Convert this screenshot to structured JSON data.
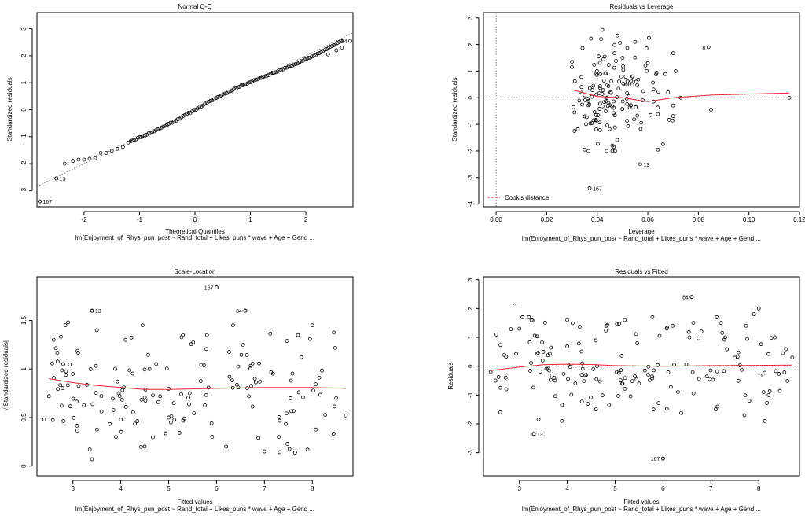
{
  "chart_data": [
    {
      "id": "qq",
      "type": "scatter",
      "title": "Normal Q-Q",
      "xlabel": "Theoretical Quantiles",
      "ylabel": "Standardized residuals",
      "subtitle": "lm(Enjoyment_of_Rhys_pun_post ~ Rand_total + Likes_puns * wave + Age + Gend ...",
      "xlim": [
        -2.85,
        2.85
      ],
      "ylim": [
        -3.6,
        3.6
      ],
      "xticks": [
        -2,
        -1,
        0,
        1,
        2
      ],
      "yticks": [
        -3,
        -2,
        -1,
        0,
        1,
        2,
        3
      ],
      "n_points": 172,
      "reference_line": {
        "intercept": 0,
        "slope": 1.0
      },
      "labeled_points": [
        {
          "label": "167",
          "x": -2.8,
          "y": -3.4
        },
        {
          "label": "13",
          "x": -2.5,
          "y": -2.55
        },
        {
          "label": "84",
          "x": 2.8,
          "y": 2.55
        }
      ],
      "points": [
        {
          "x": -2.8,
          "y": -3.4
        },
        {
          "x": -2.5,
          "y": -2.55
        },
        {
          "x": -2.35,
          "y": -2.0
        },
        {
          "x": -2.2,
          "y": -1.9
        },
        {
          "x": -2.1,
          "y": -1.85
        },
        {
          "x": -2.0,
          "y": -1.85
        },
        {
          "x": -1.9,
          "y": -1.82
        },
        {
          "x": -1.8,
          "y": -1.8
        },
        {
          "x": -1.7,
          "y": -1.6
        },
        {
          "x": -1.6,
          "y": -1.6
        },
        {
          "x": -1.5,
          "y": -1.52
        },
        {
          "x": -1.4,
          "y": -1.45
        },
        {
          "x": -1.3,
          "y": -1.38
        },
        {
          "x": -1.2,
          "y": -1.22
        }
      ]
    },
    {
      "id": "leverage",
      "type": "scatter",
      "title": "Residuals vs Leverage",
      "xlabel": "Leverage",
      "ylabel": "Standardized residuals",
      "subtitle": "lm(Enjoyment_of_Rhys_pun_post ~ Rand_total + Likes_puns * wave + Age + Gend ...",
      "xlim": [
        -0.005,
        0.12
      ],
      "ylim": [
        -4.1,
        3.2
      ],
      "xticks": [
        0.0,
        0.02,
        0.04,
        0.06,
        0.08,
        0.1,
        0.12
      ],
      "xtick_labels": [
        "0.00",
        "0.02",
        "0.04",
        "0.06",
        "0.08",
        "0.10",
        "0.12"
      ],
      "yticks": [
        -4,
        -3,
        -2,
        -1,
        0,
        1,
        2,
        3
      ],
      "legend": {
        "label": "Cook's distance",
        "position": "bottom-left"
      },
      "labeled_points": [
        {
          "label": "8",
          "x": 0.084,
          "y": 1.9
        },
        {
          "label": "13",
          "x": 0.057,
          "y": -2.5
        },
        {
          "label": "167",
          "x": 0.037,
          "y": -3.4
        }
      ],
      "points": [
        {
          "x": 0.116,
          "y": 0.0
        },
        {
          "x": 0.085,
          "y": -0.45
        },
        {
          "x": 0.071,
          "y": 1.0
        },
        {
          "x": 0.068,
          "y": 0.2
        },
        {
          "x": 0.073,
          "y": 0.0
        },
        {
          "x": 0.03,
          "y": 1.35
        },
        {
          "x": 0.03,
          "y": 1.15
        },
        {
          "x": 0.031,
          "y": -0.55
        },
        {
          "x": 0.031,
          "y": -1.25
        },
        {
          "x": 0.035,
          "y": -1.95
        },
        {
          "x": 0.046,
          "y": -1.8
        },
        {
          "x": 0.042,
          "y": 2.55
        },
        {
          "x": 0.055,
          "y": 2.1
        },
        {
          "x": 0.05,
          "y": 1.5
        },
        {
          "x": 0.064,
          "y": -1.95
        },
        {
          "x": 0.066,
          "y": -1.75
        },
        {
          "x": 0.06,
          "y": 1.3
        }
      ]
    },
    {
      "id": "scale-location",
      "type": "scatter",
      "title": "Scale-Location",
      "xlabel": "Fitted values",
      "ylabel": "√|Standardized residuals|",
      "subtitle": "lm(Enjoyment_of_Rhys_pun_post ~ Rand_total + Likes_puns * wave + Age + Gend ...",
      "xlim": [
        2.25,
        8.85
      ],
      "ylim": [
        -0.1,
        1.95
      ],
      "xticks": [
        3,
        4,
        5,
        6,
        7,
        8
      ],
      "yticks": [
        0.0,
        0.5,
        1.0,
        1.5
      ],
      "labeled_points": [
        {
          "label": "167",
          "x": 6.0,
          "y": 1.84
        },
        {
          "label": "13",
          "x": 3.4,
          "y": 1.6
        },
        {
          "label": "84",
          "x": 6.6,
          "y": 1.6
        }
      ],
      "smoother": [
        {
          "x": 2.5,
          "y": 0.9
        },
        {
          "x": 3.0,
          "y": 0.86
        },
        {
          "x": 3.5,
          "y": 0.83
        },
        {
          "x": 4.0,
          "y": 0.81
        },
        {
          "x": 4.5,
          "y": 0.79
        },
        {
          "x": 5.0,
          "y": 0.79
        },
        {
          "x": 6.0,
          "y": 0.8
        },
        {
          "x": 7.0,
          "y": 0.81
        },
        {
          "x": 8.0,
          "y": 0.81
        },
        {
          "x": 8.7,
          "y": 0.8
        }
      ],
      "points": [
        {
          "x": 2.4,
          "y": 0.48
        },
        {
          "x": 2.5,
          "y": 0.72
        },
        {
          "x": 2.6,
          "y": 1.3
        },
        {
          "x": 2.8,
          "y": 1.05
        },
        {
          "x": 2.9,
          "y": 1.48
        },
        {
          "x": 3.0,
          "y": 0.95
        },
        {
          "x": 3.4,
          "y": 0.07
        },
        {
          "x": 3.4,
          "y": 1.6
        },
        {
          "x": 3.5,
          "y": 1.4
        },
        {
          "x": 3.9,
          "y": 0.3
        },
        {
          "x": 4.1,
          "y": 1.3
        },
        {
          "x": 4.5,
          "y": 0.2
        },
        {
          "x": 4.6,
          "y": 1.0
        },
        {
          "x": 5.0,
          "y": 0.5
        },
        {
          "x": 5.3,
          "y": 1.35
        },
        {
          "x": 5.8,
          "y": 1.35
        },
        {
          "x": 6.0,
          "y": 1.84
        },
        {
          "x": 6.2,
          "y": 0.2
        },
        {
          "x": 6.6,
          "y": 1.6
        },
        {
          "x": 6.8,
          "y": 0.9
        },
        {
          "x": 7.0,
          "y": 0.15
        },
        {
          "x": 7.3,
          "y": 0.3
        },
        {
          "x": 7.7,
          "y": 1.35
        },
        {
          "x": 7.9,
          "y": 0.17
        },
        {
          "x": 8.0,
          "y": 1.45
        },
        {
          "x": 8.5,
          "y": 0.7
        },
        {
          "x": 8.7,
          "y": 0.52
        }
      ]
    },
    {
      "id": "residuals-fitted",
      "type": "scatter",
      "title": "Residuals vs Fitted",
      "xlabel": "Fitted values",
      "ylabel": "Residuals",
      "subtitle": "lm(Enjoyment_of_Rhys_pun_post ~ Rand_total + Likes_puns * wave + Age + Gend ...",
      "xlim": [
        2.25,
        8.85
      ],
      "ylim": [
        -3.8,
        3.1
      ],
      "xticks": [
        3,
        4,
        5,
        6,
        7,
        8
      ],
      "yticks": [
        -3,
        -2,
        -1,
        0,
        1,
        2,
        3
      ],
      "labeled_points": [
        {
          "label": "84",
          "x": 6.6,
          "y": 2.4
        },
        {
          "label": "13",
          "x": 3.3,
          "y": -2.35
        },
        {
          "label": "167",
          "x": 6.0,
          "y": -3.2
        }
      ],
      "smoother": [
        {
          "x": 2.4,
          "y": -0.15
        },
        {
          "x": 3.0,
          "y": -0.03
        },
        {
          "x": 3.5,
          "y": 0.05
        },
        {
          "x": 4.0,
          "y": 0.07
        },
        {
          "x": 4.5,
          "y": 0.06
        },
        {
          "x": 5.0,
          "y": 0.02
        },
        {
          "x": 6.0,
          "y": 0.0
        },
        {
          "x": 7.0,
          "y": 0.02
        },
        {
          "x": 8.0,
          "y": 0.03
        },
        {
          "x": 8.7,
          "y": 0.04
        }
      ],
      "points": [
        {
          "x": 2.4,
          "y": -0.2
        },
        {
          "x": 2.5,
          "y": -0.5
        },
        {
          "x": 2.6,
          "y": -1.6
        },
        {
          "x": 2.9,
          "y": 2.1
        },
        {
          "x": 3.0,
          "y": 1.3
        },
        {
          "x": 3.2,
          "y": 1.7
        },
        {
          "x": 3.3,
          "y": -2.35
        },
        {
          "x": 3.4,
          "y": -1.85
        },
        {
          "x": 3.5,
          "y": 0.5
        },
        {
          "x": 4.0,
          "y": 1.6
        },
        {
          "x": 4.3,
          "y": -0.3
        },
        {
          "x": 4.6,
          "y": -1.5
        },
        {
          "x": 5.2,
          "y": 1.6
        },
        {
          "x": 5.5,
          "y": -0.6
        },
        {
          "x": 5.8,
          "y": -1.5
        },
        {
          "x": 6.0,
          "y": -3.2
        },
        {
          "x": 6.2,
          "y": 1.4
        },
        {
          "x": 6.6,
          "y": 2.4
        },
        {
          "x": 6.8,
          "y": 1.2
        },
        {
          "x": 7.1,
          "y": -1.5
        },
        {
          "x": 7.3,
          "y": 1.0
        },
        {
          "x": 7.7,
          "y": -1.7
        },
        {
          "x": 7.9,
          "y": 1.8
        },
        {
          "x": 8.0,
          "y": 2.0
        },
        {
          "x": 8.1,
          "y": -0.9
        },
        {
          "x": 8.5,
          "y": 0.45
        },
        {
          "x": 8.7,
          "y": 0.3
        }
      ]
    }
  ]
}
